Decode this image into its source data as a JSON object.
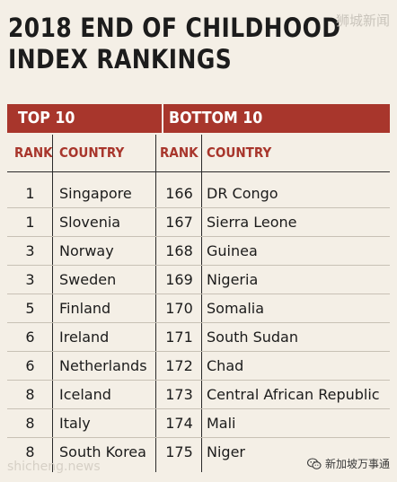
{
  "title": {
    "line1": "2018 END OF CHILDHOOD",
    "line2": "INDEX RANKINGS"
  },
  "watermarks": {
    "top_right": "狮城新闻",
    "bottom_left": "shicheng.news",
    "bottom_right": "新加坡万事通",
    "bottom_right_icon": "wechat-icon"
  },
  "banner": {
    "top_label": "TOP 10",
    "bottom_label": "BOTTOM 10",
    "color": "#a8362c"
  },
  "headers": {
    "rank": "RANK",
    "country": "COUNTRY"
  },
  "rows": [
    {
      "top_rank": "1",
      "top_country": "Singapore",
      "bottom_rank": "166",
      "bottom_country": "DR Congo"
    },
    {
      "top_rank": "1",
      "top_country": "Slovenia",
      "bottom_rank": "167",
      "bottom_country": "Sierra Leone"
    },
    {
      "top_rank": "3",
      "top_country": "Norway",
      "bottom_rank": "168",
      "bottom_country": "Guinea"
    },
    {
      "top_rank": "3",
      "top_country": "Sweden",
      "bottom_rank": "169",
      "bottom_country": "Nigeria"
    },
    {
      "top_rank": "5",
      "top_country": "Finland",
      "bottom_rank": "170",
      "bottom_country": "Somalia"
    },
    {
      "top_rank": "6",
      "top_country": "Ireland",
      "bottom_rank": "171",
      "bottom_country": "South Sudan"
    },
    {
      "top_rank": "6",
      "top_country": "Netherlands",
      "bottom_rank": "172",
      "bottom_country": "Chad"
    },
    {
      "top_rank": "8",
      "top_country": "Iceland",
      "bottom_rank": "173",
      "bottom_country": "Central African Republic"
    },
    {
      "top_rank": "8",
      "top_country": "Italy",
      "bottom_rank": "174",
      "bottom_country": "Mali"
    },
    {
      "top_rank": "8",
      "top_country": "South Korea",
      "bottom_rank": "175",
      "bottom_country": "Niger"
    }
  ]
}
